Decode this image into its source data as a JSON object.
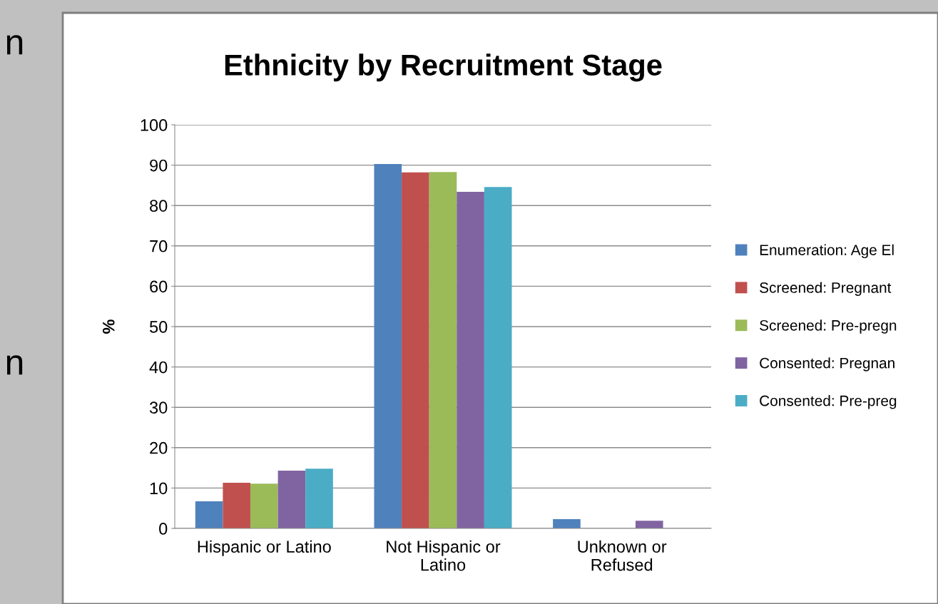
{
  "chart_data": {
    "type": "bar",
    "title": "Ethnicity by Recruitment Stage",
    "ylabel": "%",
    "categories": [
      "Hispanic or Latino",
      "Not Hispanic or\nLatino",
      "Unknown or\nRefused"
    ],
    "series": [
      {
        "name": "Enumeration: Age El",
        "color": "#4f81bd",
        "values": [
          6.7,
          90.3,
          2.3
        ]
      },
      {
        "name": "Screened: Pregnant",
        "color": "#c0504d",
        "values": [
          11.3,
          88.2,
          0
        ]
      },
      {
        "name": "Screened: Pre-pregn",
        "color": "#9bbb59",
        "values": [
          11.1,
          88.3,
          0
        ]
      },
      {
        "name": "Consented: Pregnan",
        "color": "#8064a2",
        "values": [
          14.3,
          83.4,
          1.9
        ]
      },
      {
        "name": "Consented: Pre-preg",
        "color": "#4bacc6",
        "values": [
          14.8,
          84.6,
          0
        ]
      }
    ],
    "ylim": [
      0,
      100
    ],
    "yticks": [
      0,
      10,
      20,
      30,
      40,
      50,
      60,
      70,
      80,
      90,
      100
    ],
    "grid": "y",
    "legend": "right",
    "annotations": [
      "n",
      "n"
    ]
  }
}
